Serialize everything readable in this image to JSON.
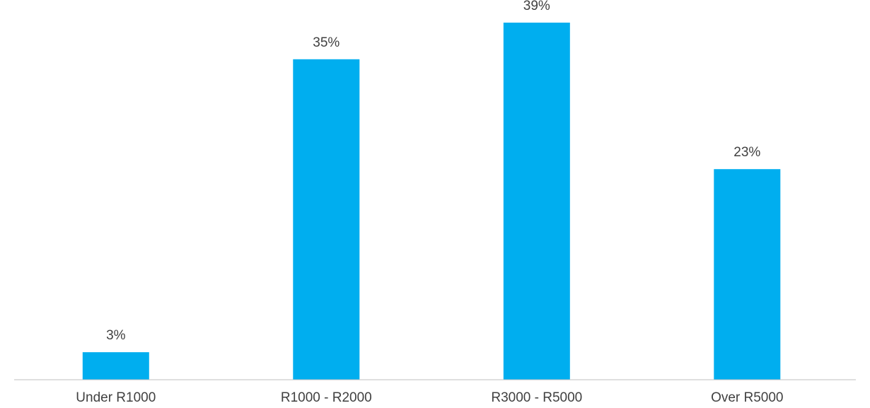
{
  "chart_data": {
    "type": "bar",
    "categories": [
      "Under R1000",
      "R1000 - R2000",
      "R3000 - R5000",
      "Over R5000"
    ],
    "values": [
      3,
      35,
      39,
      23
    ],
    "value_labels": [
      "3%",
      "35%",
      "39%",
      "23%"
    ],
    "unit": "%",
    "title": "",
    "xlabel": "",
    "ylabel": "",
    "ylim": [
      0,
      40
    ],
    "grid": false,
    "legend": "none",
    "bar_color": "#00AEEF",
    "axis_color": "#BFBFBF",
    "text_color": "#404040"
  }
}
